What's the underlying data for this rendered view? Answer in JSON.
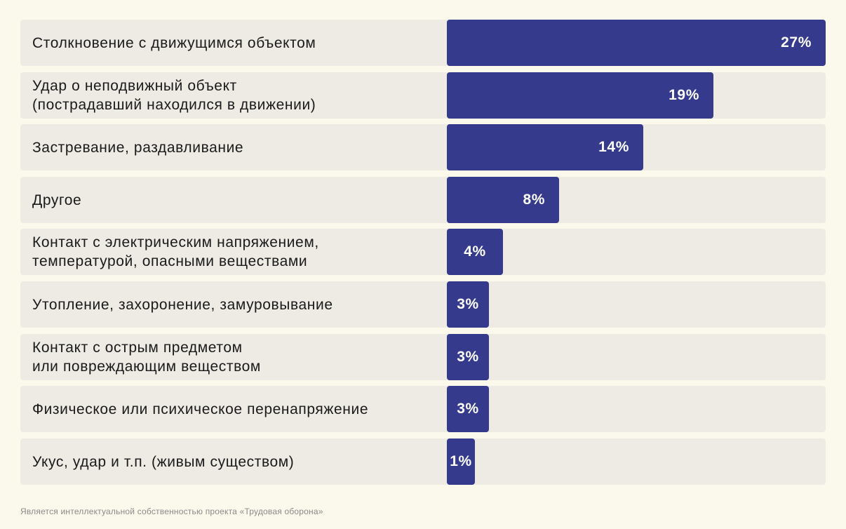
{
  "chart_data": {
    "type": "bar",
    "orientation": "horizontal",
    "categories": [
      "Столкновение с движущимся объектом",
      "Удар о неподвижный объект\n(пострадавший находился в движении)",
      "Застревание, раздавливание",
      "Другое",
      "Контакт с электрическим напряжением,\nтемпературой, опасными веществами",
      "Утопление, захоронение, замуровывание",
      "Контакт с острым предметом\nили повреждающим веществом",
      "Физическое или психическое перенапряжение",
      "Укус, удар и т.п. (живым существом)"
    ],
    "values": [
      27,
      19,
      14,
      8,
      4,
      3,
      3,
      3,
      1
    ],
    "value_labels": [
      "27%",
      "19%",
      "14%",
      "8%",
      "4%",
      "3%",
      "3%",
      "3%",
      "1%"
    ],
    "unit": "%",
    "xlim": [
      0,
      27
    ],
    "grid": false,
    "legend": "none",
    "colors": {
      "bar": "#353a8c",
      "track": "#eeebe5",
      "background": "#fbf8ec",
      "label_text": "#1a1a1a",
      "value_text": "#ffffff"
    }
  },
  "footer": {
    "text": "Является интеллектуальной собственностью проекта «Трудовая оборона»"
  }
}
